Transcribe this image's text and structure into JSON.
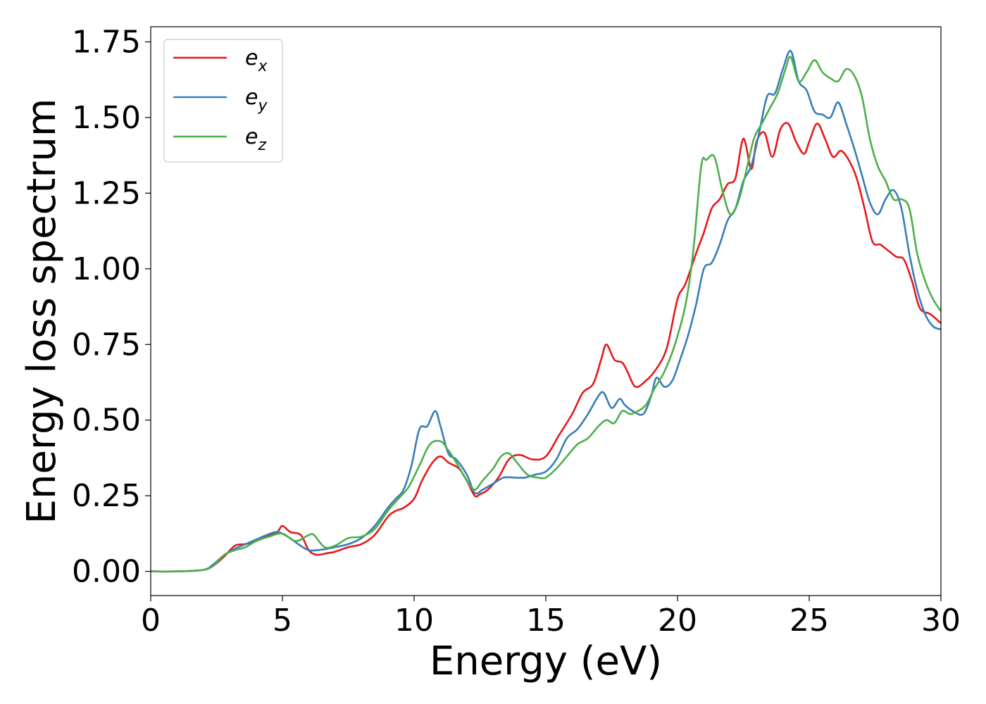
{
  "chart_data": {
    "type": "line",
    "title": "",
    "xlabel": "Energy (eV)",
    "ylabel": "Energy loss spectrum",
    "xlim": [
      0,
      30
    ],
    "ylim": [
      -0.08,
      1.8
    ],
    "xticks": [
      0,
      5,
      10,
      15,
      20,
      25,
      30
    ],
    "xtick_labels": [
      "0",
      "5",
      "10",
      "15",
      "20",
      "25",
      "30"
    ],
    "yticks": [
      0,
      0.25,
      0.5,
      0.75,
      1.0,
      1.25,
      1.5,
      1.75
    ],
    "ytick_labels": [
      "0.00",
      "0.25",
      "0.50",
      "0.75",
      "1.00",
      "1.25",
      "1.50",
      "1.75"
    ],
    "grid": false,
    "legend": {
      "placement": "top-left"
    },
    "series": [
      {
        "name": "e_x",
        "label_base": "e",
        "label_sub": "x",
        "color": "#e41a1c",
        "x": [
          0,
          1,
          2,
          2.4,
          2.8,
          3.2,
          3.6,
          4.0,
          4.4,
          4.8,
          5.0,
          5.3,
          5.7,
          6.0,
          6.3,
          6.7,
          7.0,
          7.5,
          8.0,
          8.5,
          9.0,
          9.3,
          9.6,
          10.0,
          10.3,
          10.7,
          11.0,
          11.3,
          11.7,
          12.0,
          12.3,
          12.5,
          12.8,
          13.2,
          13.6,
          14.0,
          14.5,
          15.0,
          15.5,
          16.0,
          16.4,
          16.8,
          17.1,
          17.3,
          17.6,
          17.9,
          18.1,
          18.4,
          18.8,
          19.2,
          19.6,
          20.0,
          20.3,
          20.7,
          21.0,
          21.3,
          21.6,
          21.9,
          22.2,
          22.5,
          22.8,
          23.0,
          23.3,
          23.6,
          23.9,
          24.2,
          24.5,
          24.8,
          25.0,
          25.3,
          25.6,
          25.9,
          26.2,
          26.5,
          26.8,
          27.1,
          27.4,
          27.7,
          28.0,
          28.3,
          28.6,
          28.9,
          29.2,
          29.6,
          30.0
        ],
        "y": [
          0,
          0,
          0.005,
          0.02,
          0.05,
          0.085,
          0.09,
          0.1,
          0.115,
          0.13,
          0.15,
          0.13,
          0.12,
          0.07,
          0.055,
          0.06,
          0.065,
          0.08,
          0.09,
          0.12,
          0.18,
          0.2,
          0.21,
          0.24,
          0.3,
          0.36,
          0.38,
          0.36,
          0.34,
          0.3,
          0.25,
          0.255,
          0.27,
          0.31,
          0.37,
          0.385,
          0.37,
          0.38,
          0.45,
          0.52,
          0.59,
          0.62,
          0.7,
          0.75,
          0.7,
          0.69,
          0.66,
          0.61,
          0.63,
          0.67,
          0.74,
          0.9,
          0.95,
          1.05,
          1.12,
          1.2,
          1.23,
          1.28,
          1.3,
          1.43,
          1.33,
          1.42,
          1.45,
          1.37,
          1.46,
          1.48,
          1.42,
          1.38,
          1.42,
          1.48,
          1.43,
          1.37,
          1.39,
          1.36,
          1.3,
          1.2,
          1.09,
          1.08,
          1.06,
          1.04,
          1.03,
          0.96,
          0.87,
          0.85,
          0.82
        ]
      },
      {
        "name": "e_y",
        "label_base": "e",
        "label_sub": "y",
        "color": "#377eb8",
        "x": [
          0,
          1,
          2,
          2.4,
          2.8,
          3.2,
          3.6,
          4.0,
          4.4,
          4.8,
          5.2,
          5.6,
          6.0,
          6.5,
          7.0,
          7.5,
          8.0,
          8.5,
          9.0,
          9.3,
          9.6,
          9.9,
          10.2,
          10.5,
          10.8,
          11.0,
          11.3,
          11.6,
          12.0,
          12.3,
          12.6,
          13.0,
          13.4,
          13.8,
          14.2,
          14.6,
          15.0,
          15.4,
          15.8,
          16.2,
          16.6,
          17.0,
          17.2,
          17.5,
          17.8,
          18.0,
          18.3,
          18.7,
          19.0,
          19.2,
          19.5,
          19.8,
          20.1,
          20.4,
          20.7,
          21.0,
          21.3,
          21.6,
          21.9,
          22.2,
          22.5,
          22.8,
          23.1,
          23.4,
          23.7,
          24.0,
          24.3,
          24.6,
          24.9,
          25.2,
          25.5,
          25.8,
          26.1,
          26.4,
          26.7,
          27.0,
          27.3,
          27.6,
          27.9,
          28.2,
          28.5,
          28.8,
          29.1,
          29.4,
          29.7,
          30.0
        ],
        "y": [
          0,
          0,
          0.005,
          0.025,
          0.055,
          0.075,
          0.09,
          0.105,
          0.12,
          0.13,
          0.115,
          0.09,
          0.07,
          0.072,
          0.08,
          0.09,
          0.11,
          0.15,
          0.21,
          0.24,
          0.27,
          0.35,
          0.47,
          0.48,
          0.53,
          0.48,
          0.39,
          0.37,
          0.32,
          0.26,
          0.27,
          0.29,
          0.31,
          0.31,
          0.31,
          0.32,
          0.33,
          0.37,
          0.44,
          0.47,
          0.52,
          0.58,
          0.59,
          0.54,
          0.57,
          0.55,
          0.53,
          0.52,
          0.58,
          0.64,
          0.61,
          0.63,
          0.7,
          0.78,
          0.88,
          1.0,
          1.02,
          1.08,
          1.16,
          1.2,
          1.29,
          1.34,
          1.45,
          1.57,
          1.58,
          1.66,
          1.72,
          1.62,
          1.59,
          1.52,
          1.51,
          1.5,
          1.55,
          1.48,
          1.4,
          1.31,
          1.22,
          1.18,
          1.23,
          1.26,
          1.2,
          1.05,
          0.93,
          0.85,
          0.81,
          0.8
        ]
      },
      {
        "name": "e_z",
        "label_base": "e",
        "label_sub": "z",
        "color": "#4daf4a",
        "x": [
          0,
          1,
          2,
          2.4,
          2.8,
          3.2,
          3.6,
          4.0,
          4.5,
          5.0,
          5.5,
          6.0,
          6.2,
          6.6,
          7.0,
          7.5,
          8.0,
          8.5,
          9.0,
          9.4,
          9.8,
          10.2,
          10.6,
          11.0,
          11.3,
          11.6,
          12.0,
          12.3,
          12.6,
          13.0,
          13.3,
          13.6,
          13.9,
          14.3,
          14.7,
          15.0,
          15.4,
          15.8,
          16.2,
          16.6,
          17.0,
          17.3,
          17.6,
          17.9,
          18.2,
          18.5,
          18.8,
          19.1,
          19.5,
          19.9,
          20.3,
          20.6,
          20.9,
          21.1,
          21.4,
          21.7,
          22.0,
          22.3,
          22.6,
          22.9,
          23.2,
          23.5,
          23.8,
          24.1,
          24.3,
          24.6,
          24.9,
          25.2,
          25.5,
          25.8,
          26.1,
          26.4,
          26.7,
          27.0,
          27.3,
          27.6,
          27.9,
          28.2,
          28.5,
          28.8,
          29.1,
          29.4,
          29.7,
          30.0
        ],
        "y": [
          0,
          0,
          0.005,
          0.02,
          0.055,
          0.07,
          0.08,
          0.1,
          0.115,
          0.125,
          0.1,
          0.12,
          0.12,
          0.08,
          0.085,
          0.11,
          0.115,
          0.14,
          0.2,
          0.24,
          0.28,
          0.35,
          0.42,
          0.43,
          0.4,
          0.36,
          0.3,
          0.27,
          0.3,
          0.34,
          0.38,
          0.39,
          0.36,
          0.32,
          0.31,
          0.31,
          0.34,
          0.38,
          0.42,
          0.44,
          0.48,
          0.5,
          0.49,
          0.53,
          0.52,
          0.53,
          0.55,
          0.6,
          0.66,
          0.75,
          0.88,
          1.06,
          1.34,
          1.36,
          1.37,
          1.26,
          1.18,
          1.22,
          1.32,
          1.43,
          1.48,
          1.53,
          1.58,
          1.66,
          1.7,
          1.62,
          1.65,
          1.69,
          1.65,
          1.63,
          1.62,
          1.66,
          1.64,
          1.57,
          1.43,
          1.34,
          1.29,
          1.23,
          1.23,
          1.2,
          1.05,
          0.96,
          0.9,
          0.86
        ]
      }
    ]
  }
}
